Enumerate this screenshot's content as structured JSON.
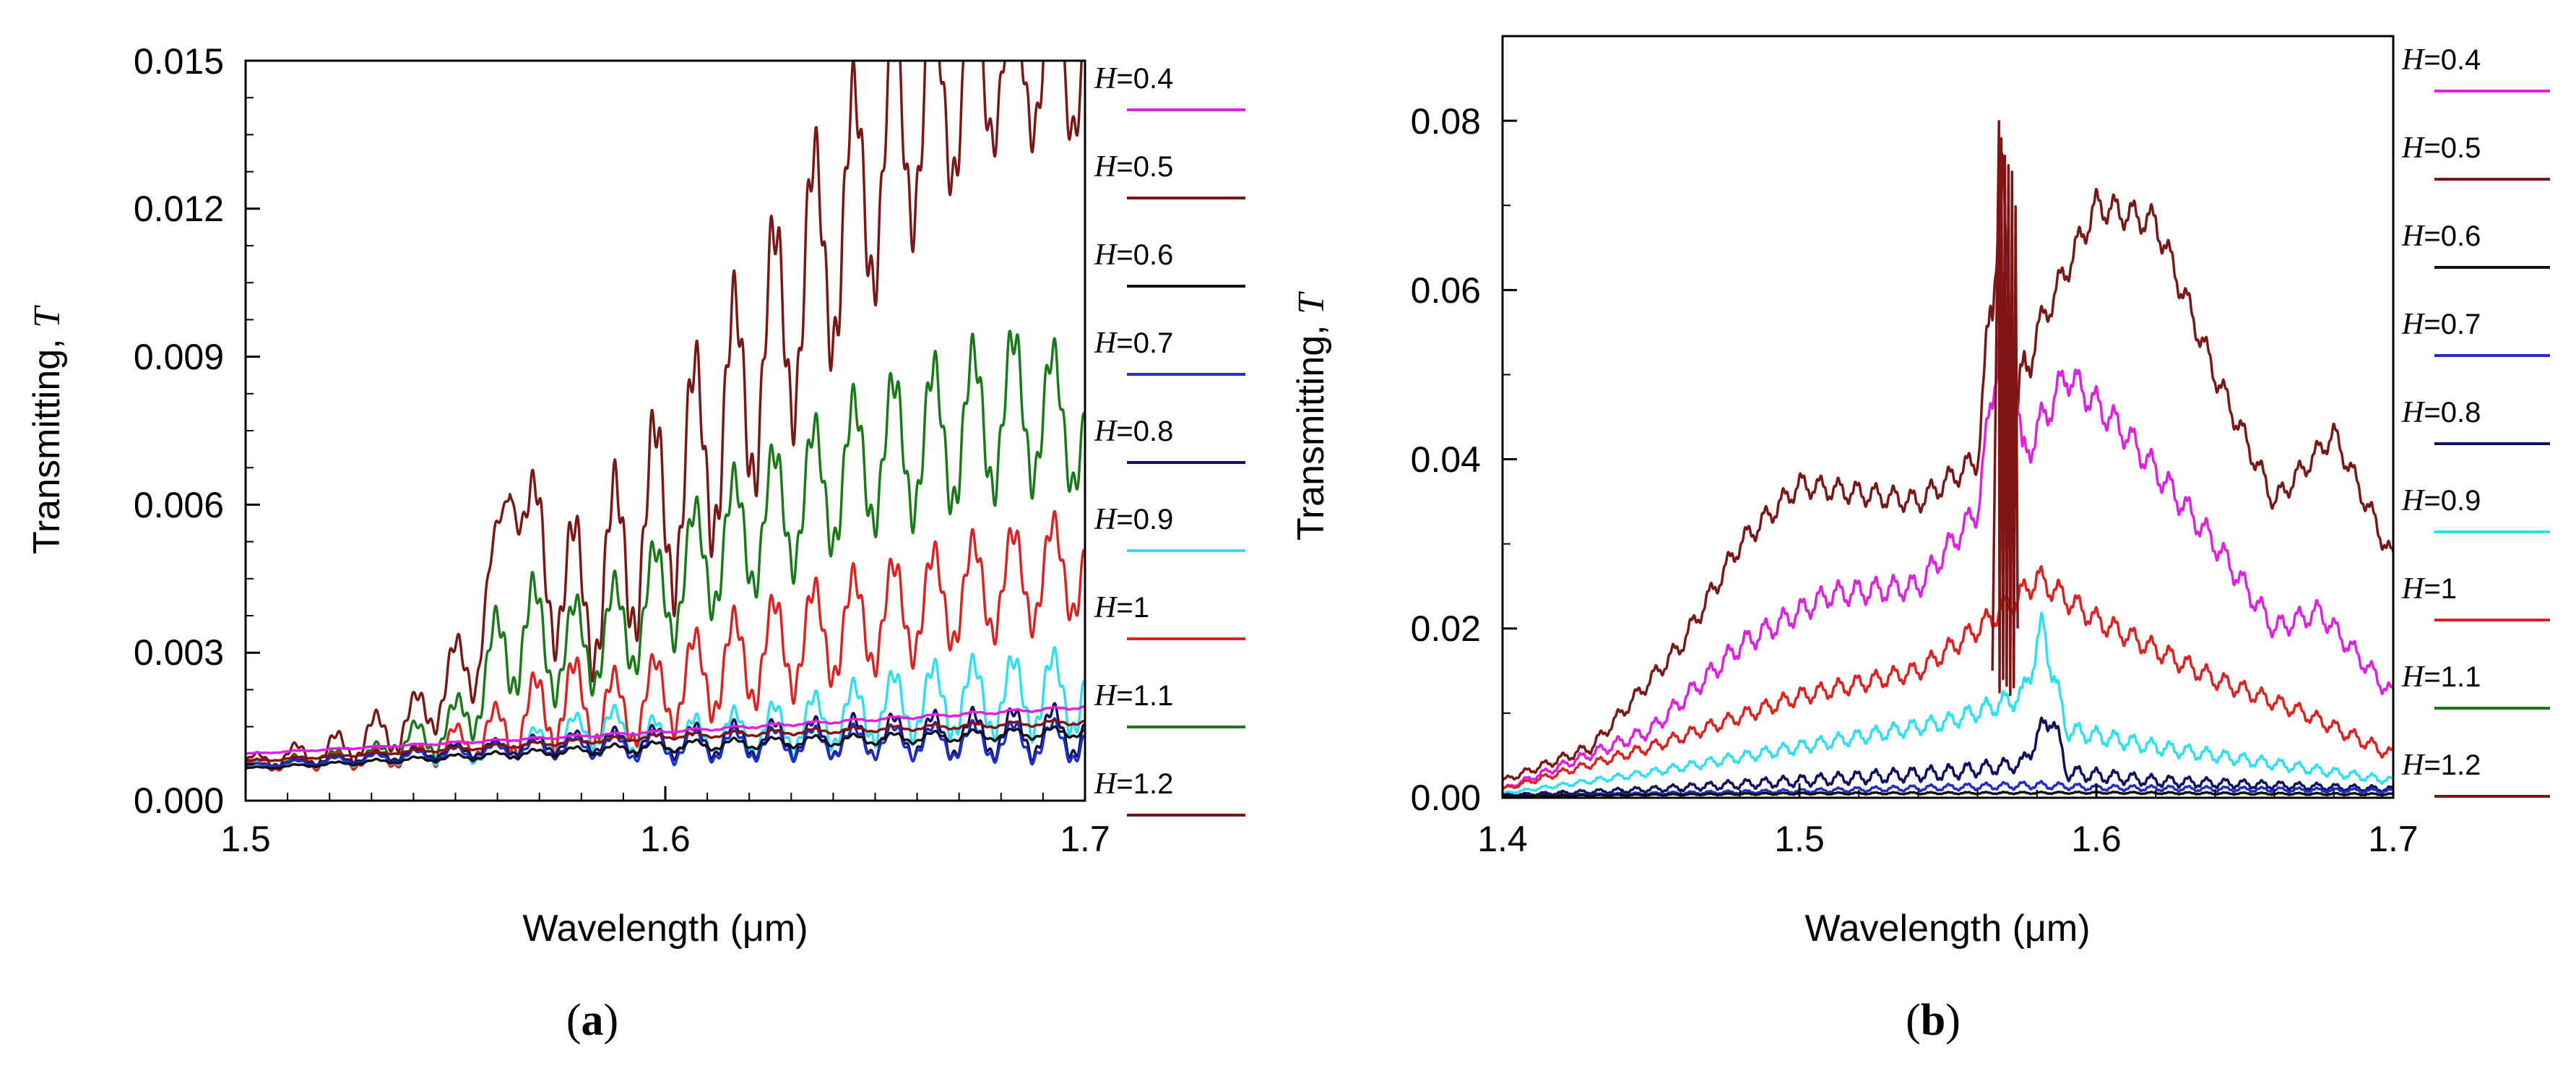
{
  "colors": {
    "H=0.4": "#e020e0",
    "H=0.5": "#801414",
    "H=0.6": "#111111",
    "H=0.7": "#1f2fc8",
    "H=0.8": "#101060",
    "H=0.9": "#30e0f0",
    "H=1": "#dd2222",
    "H=1.1": "#1a7a1a",
    "H=1.2": "#7a1818"
  },
  "captions": {
    "a": "a",
    "b": "b"
  },
  "chart_data": [
    {
      "id": "a",
      "type": "line",
      "xlabel": "Wavelength (μm)",
      "ylabel_prefix": "Transmitting, ",
      "ylabel_symbol": "T",
      "xlim": [
        1.5,
        1.7
      ],
      "ylim": [
        0.0,
        0.015
      ],
      "xticks": [
        1.5,
        1.6,
        1.7
      ],
      "xtick_labels": [
        "1.5",
        "1.6",
        "1.7"
      ],
      "yticks": [
        0.0,
        0.003,
        0.006,
        0.009,
        0.012,
        0.015
      ],
      "ytick_labels": [
        "0.000",
        "0.003",
        "0.006",
        "0.009",
        "0.012",
        "0.015"
      ],
      "legend": [
        {
          "symbol": "H",
          "value": "=0.4",
          "key": "H=0.4"
        },
        {
          "symbol": "H",
          "value": "=0.5",
          "key": "H=0.5"
        },
        {
          "symbol": "H",
          "value": "=0.6",
          "key": "H=0.6"
        },
        {
          "symbol": "H",
          "value": "=0.7",
          "key": "H=0.7"
        },
        {
          "symbol": "H",
          "value": "=0.8",
          "key": "H=0.8"
        },
        {
          "symbol": "H",
          "value": "=0.9",
          "key": "H=0.9"
        },
        {
          "symbol": "H",
          "value": "=1",
          "key": "H=1"
        },
        {
          "symbol": "H",
          "value": "=1.1",
          "key": "H=1.1"
        },
        {
          "symbol": "H",
          "value": "=1.2",
          "key": "H=1.2"
        }
      ],
      "series": [
        {
          "name": "H=1.2",
          "x": [
            1.5,
            1.52,
            1.54,
            1.555,
            1.563,
            1.57,
            1.58,
            1.6,
            1.62,
            1.64,
            1.66,
            1.68,
            1.7
          ],
          "y": [
            0.0008,
            0.001,
            0.0016,
            0.003,
            0.0065,
            0.005,
            0.004,
            0.006,
            0.0085,
            0.0115,
            0.014,
            0.015,
            0.015
          ],
          "osc_amp": [
            0.0001,
            0.0003,
            0.0005,
            0.0008,
            0.0003,
            0.0014,
            0.0015,
            0.002,
            0.0022,
            0.0024,
            0.0022,
            0.0015,
            0.0015
          ],
          "osc_period": 0.0095
        },
        {
          "name": "H=1.1",
          "x": [
            1.5,
            1.53,
            1.55,
            1.565,
            1.575,
            1.59,
            1.61,
            1.63,
            1.65,
            1.67,
            1.685,
            1.7
          ],
          "y": [
            0.0007,
            0.0009,
            0.0015,
            0.0035,
            0.003,
            0.0035,
            0.005,
            0.006,
            0.007,
            0.0075,
            0.008,
            0.0075
          ],
          "osc_amp": [
            0.0001,
            0.0002,
            0.0005,
            0.0012,
            0.0009,
            0.001,
            0.0012,
            0.0013,
            0.0014,
            0.0015,
            0.0015,
            0.0012
          ],
          "osc_period": 0.0095
        },
        {
          "name": "H=1",
          "x": [
            1.5,
            1.54,
            1.56,
            1.575,
            1.59,
            1.61,
            1.63,
            1.65,
            1.67,
            1.7
          ],
          "y": [
            0.0007,
            0.0009,
            0.0014,
            0.002,
            0.0018,
            0.0026,
            0.0032,
            0.0037,
            0.0042,
            0.0048
          ],
          "osc_amp": [
            0.0001,
            0.0002,
            0.0005,
            0.0009,
            0.0007,
            0.0009,
            0.001,
            0.001,
            0.001,
            0.001
          ],
          "osc_period": 0.0095
        },
        {
          "name": "H=0.9",
          "x": [
            1.5,
            1.56,
            1.585,
            1.6,
            1.63,
            1.66,
            1.7
          ],
          "y": [
            0.0007,
            0.001,
            0.0015,
            0.0012,
            0.0015,
            0.002,
            0.0022
          ],
          "osc_amp": [
            5e-05,
            0.0002,
            0.0004,
            0.0004,
            0.0005,
            0.0007,
            0.0008
          ],
          "osc_period": 0.0095
        },
        {
          "name": "H=0.8",
          "x": [
            1.5,
            1.58,
            1.6,
            1.65,
            1.7
          ],
          "y": [
            0.0007,
            0.0012,
            0.0012,
            0.0013,
            0.0014
          ],
          "osc_amp": [
            3e-05,
            0.0002,
            0.0003,
            0.0004,
            0.0005
          ],
          "osc_period": 0.0095
        },
        {
          "name": "H=0.7",
          "x": [
            1.5,
            1.58,
            1.6,
            1.65,
            1.7
          ],
          "y": [
            0.0007,
            0.0011,
            0.0011,
            0.0012,
            0.0012
          ],
          "osc_amp": [
            3e-05,
            0.0002,
            0.0003,
            0.0003,
            0.0004
          ],
          "osc_period": 0.0095
        },
        {
          "name": "H=0.6",
          "x": [
            1.5,
            1.6,
            1.7
          ],
          "y": [
            0.00065,
            0.0011,
            0.0014
          ],
          "osc_amp": [
            2e-05,
            0.0001,
            0.0001
          ],
          "osc_period": 0.0095
        },
        {
          "name": "H=0.5",
          "x": [
            1.5,
            1.6,
            1.7
          ],
          "y": [
            0.0008,
            0.0013,
            0.0016
          ],
          "osc_amp": [
            2e-05,
            5e-05,
            5e-05
          ],
          "osc_period": 0.0095
        },
        {
          "name": "H=0.4",
          "x": [
            1.5,
            1.6,
            1.7
          ],
          "y": [
            0.00095,
            0.0014,
            0.0019
          ],
          "osc_amp": [
            1e-05,
            3e-05,
            3e-05
          ],
          "osc_period": 0.0095
        }
      ]
    },
    {
      "id": "b",
      "type": "line",
      "xlabel": "Wavelength (μm)",
      "ylabel_prefix": "Transmitting, ",
      "ylabel_symbol": "T",
      "xlim": [
        1.4,
        1.7
      ],
      "ylim": [
        0.0,
        0.09
      ],
      "xticks": [
        1.4,
        1.5,
        1.6,
        1.7
      ],
      "xtick_labels": [
        "1.4",
        "1.5",
        "1.6",
        "1.7"
      ],
      "yticks": [
        0.0,
        0.02,
        0.04,
        0.06,
        0.08
      ],
      "ytick_labels": [
        "0.00",
        "0.02",
        "0.04",
        "0.06",
        "0.08"
      ],
      "legend": [
        {
          "symbol": "H",
          "value": "=0.4",
          "key": "H=0.4"
        },
        {
          "symbol": "H",
          "value": "=0.5",
          "key": "H=0.5"
        },
        {
          "symbol": "H",
          "value": "=0.6",
          "key": "H=0.6"
        },
        {
          "symbol": "H",
          "value": "=0.7",
          "key": "H=0.7"
        },
        {
          "symbol": "H",
          "value": "=0.8",
          "key": "H=0.8"
        },
        {
          "symbol": "H",
          "value": "=0.9",
          "key": "H=0.9"
        },
        {
          "symbol": "H",
          "value": "=1",
          "key": "H=1"
        },
        {
          "symbol": "H",
          "value": "=1.1",
          "key": "H=1.1"
        },
        {
          "symbol": "H",
          "value": "=1.2",
          "key": "H=1.2"
        }
      ],
      "series": [
        {
          "name": "H=1.2",
          "x": [
            1.4,
            1.43,
            1.46,
            1.48,
            1.5,
            1.52,
            1.54,
            1.56,
            1.565,
            1.568,
            1.572,
            1.58,
            1.6,
            1.62,
            1.64,
            1.66,
            1.68,
            1.7
          ],
          "y": [
            0.002,
            0.006,
            0.018,
            0.03,
            0.037,
            0.036,
            0.035,
            0.04,
            0.06,
            0.075,
            0.045,
            0.055,
            0.07,
            0.068,
            0.05,
            0.035,
            0.043,
            0.028
          ],
          "osc_amp": [
            0.0003,
            0.0006,
            0.001,
            0.0012,
            0.0012,
            0.0012,
            0.0012,
            0.0014,
            0.004,
            0.004,
            0.004,
            0.0016,
            0.0016,
            0.0016,
            0.0014,
            0.0012,
            0.0012,
            0.0012
          ],
          "osc_period": 0.0062
        },
        {
          "name": "H=0.4",
          "x": [
            1.4,
            1.45,
            1.48,
            1.51,
            1.54,
            1.56,
            1.57,
            1.575,
            1.59,
            1.61,
            1.64,
            1.66,
            1.675,
            1.69,
            1.7
          ],
          "y": [
            0.001,
            0.008,
            0.018,
            0.024,
            0.025,
            0.034,
            0.062,
            0.04,
            0.05,
            0.043,
            0.03,
            0.02,
            0.022,
            0.016,
            0.012
          ],
          "osc_amp": [
            0.0002,
            0.0008,
            0.0012,
            0.0013,
            0.0013,
            0.0015,
            0.003,
            0.002,
            0.0018,
            0.0016,
            0.0014,
            0.0012,
            0.0012,
            0.001,
            0.001
          ],
          "osc_period": 0.0062
        },
        {
          "name": "H=1",
          "x": [
            1.4,
            1.45,
            1.5,
            1.54,
            1.56,
            1.575,
            1.58,
            1.6,
            1.64,
            1.67,
            1.7
          ],
          "y": [
            0.001,
            0.006,
            0.012,
            0.015,
            0.02,
            0.024,
            0.026,
            0.021,
            0.014,
            0.01,
            0.005
          ],
          "osc_amp": [
            0.0002,
            0.0006,
            0.0009,
            0.001,
            0.0012,
            0.0014,
            0.0014,
            0.0012,
            0.001,
            0.0008,
            0.0007
          ],
          "osc_period": 0.0062
        },
        {
          "name": "H=0.9",
          "x": [
            1.4,
            1.45,
            1.5,
            1.55,
            1.575,
            1.582,
            1.59,
            1.62,
            1.66,
            1.7
          ],
          "y": [
            0.0005,
            0.003,
            0.006,
            0.009,
            0.012,
            0.02,
            0.008,
            0.006,
            0.004,
            0.002
          ],
          "osc_amp": [
            0.0001,
            0.0004,
            0.0007,
            0.0009,
            0.0012,
            0.002,
            0.001,
            0.0008,
            0.0006,
            0.0004
          ],
          "osc_period": 0.0062
        },
        {
          "name": "H=0.8",
          "x": [
            1.4,
            1.45,
            1.5,
            1.55,
            1.575,
            1.585,
            1.59,
            1.62,
            1.66,
            1.7
          ],
          "y": [
            0.0003,
            0.001,
            0.002,
            0.003,
            0.004,
            0.01,
            0.003,
            0.002,
            0.0015,
            0.001
          ],
          "osc_amp": [
            0.0001,
            0.0003,
            0.0006,
            0.0008,
            0.0008,
            0.0015,
            0.0008,
            0.0006,
            0.0004,
            0.0003
          ],
          "osc_period": 0.0062
        },
        {
          "name": "H=0.7",
          "x": [
            1.4,
            1.5,
            1.58,
            1.6,
            1.7
          ],
          "y": [
            0.0002,
            0.0008,
            0.0015,
            0.0012,
            0.0008
          ],
          "osc_amp": [
            5e-05,
            0.0002,
            0.0004,
            0.0003,
            0.0002
          ],
          "osc_period": 0.0062
        },
        {
          "name": "H=0.6",
          "x": [
            1.4,
            1.5,
            1.6,
            1.7
          ],
          "y": [
            0.0002,
            0.0005,
            0.0006,
            0.0004
          ],
          "osc_amp": [
            3e-05,
            0.0001,
            0.0001,
            0.0001
          ],
          "osc_period": 0.0062
        },
        {
          "name": "H=0.5",
          "x": [
            1.565,
            1.5672,
            1.5674,
            1.568,
            1.5686,
            1.5692,
            1.5698,
            1.5704,
            1.571,
            1.5716,
            1.5722,
            1.5728,
            1.5735
          ],
          "y": [
            0.015,
            0.08,
            0.012,
            0.078,
            0.014,
            0.076,
            0.013,
            0.075,
            0.012,
            0.074,
            0.013,
            0.07,
            0.02
          ],
          "osc_amp": [
            0,
            0,
            0,
            0,
            0,
            0,
            0,
            0,
            0,
            0,
            0,
            0,
            0
          ],
          "osc_period": 0.01
        }
      ]
    }
  ]
}
